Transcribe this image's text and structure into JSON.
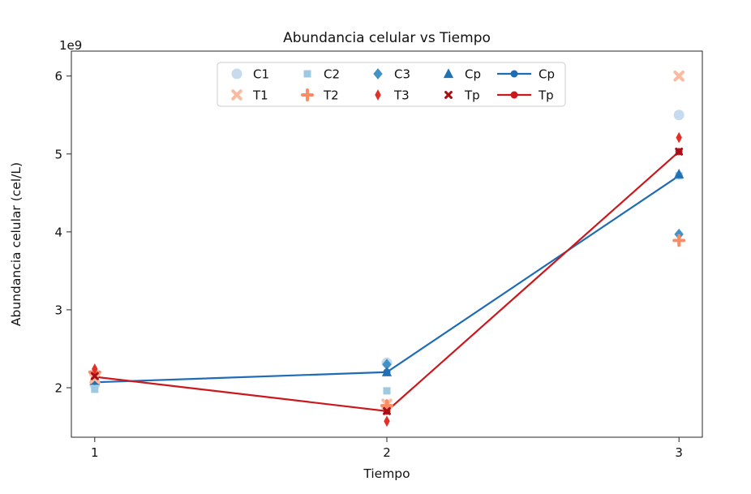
{
  "chart_data": {
    "type": "scatter",
    "title": "Abundancia celular vs Tiempo",
    "xlabel": "Tiempo",
    "ylabel": "Abundancia celular (cel/L)",
    "y_offset_label": "1e9",
    "x": [
      1,
      2,
      3
    ],
    "xtick_labels": [
      "1",
      "2",
      "3"
    ],
    "ytick_values": [
      2,
      3,
      4,
      5,
      6
    ],
    "ytick_labels": [
      "2",
      "3",
      "4",
      "5",
      "6"
    ],
    "xlim": [
      0.92,
      3.08
    ],
    "ylim": [
      1.365,
      6.32
    ],
    "y_scale_note": "y values are in units of 1e9 cel/L",
    "grid": false,
    "series": [
      {
        "name": "Cp",
        "kind": "line",
        "marker": "circle",
        "color": "#1f6cb4",
        "size": 9,
        "values": [
          2.07,
          2.2,
          4.72
        ]
      },
      {
        "name": "C1",
        "kind": "scatter",
        "marker": "circle",
        "color": "#c7dbef",
        "size": 13,
        "values": [
          2.04,
          2.32,
          5.5
        ]
      },
      {
        "name": "C2",
        "kind": "scatter",
        "marker": "square",
        "color": "#9ecae1",
        "size": 9,
        "values": [
          1.98,
          1.96,
          4.72
        ]
      },
      {
        "name": "C3",
        "kind": "scatter",
        "marker": "diamond",
        "color": "#4292c6",
        "size": 12,
        "values": [
          2.1,
          2.3,
          3.97
        ]
      },
      {
        "name": "Cp",
        "kind": "scatter",
        "marker": "triangle",
        "color": "#2171b5",
        "size": 12,
        "values": [
          2.09,
          2.2,
          4.74
        ]
      },
      {
        "name": "Tp",
        "kind": "line",
        "marker": "circle",
        "color": "#cb181d",
        "size": 9,
        "values": [
          2.14,
          1.7,
          5.03
        ]
      },
      {
        "name": "T1",
        "kind": "scatter",
        "marker": "x-thick",
        "color": "#fcbba1",
        "size": 12,
        "values": [
          2.12,
          1.79,
          6.0
        ]
      },
      {
        "name": "T2",
        "kind": "scatter",
        "marker": "plus-thick",
        "color": "#fc8a63",
        "size": 12,
        "values": [
          2.2,
          1.77,
          3.89
        ]
      },
      {
        "name": "T3",
        "kind": "scatter",
        "marker": "thin-diamond",
        "color": "#e32f27",
        "size": 12,
        "values": [
          2.24,
          1.57,
          5.21
        ]
      },
      {
        "name": "Tp",
        "kind": "scatter",
        "marker": "x-small",
        "color": "#a50f15",
        "size": 8,
        "values": [
          2.15,
          1.7,
          5.03
        ]
      }
    ],
    "legend": {
      "position": "top-center",
      "columns": 5,
      "rows": 2,
      "entries": [
        {
          "label": "C1",
          "marker": "circle",
          "color": "#c7dbef",
          "kind": "scatter",
          "size": 13
        },
        {
          "label": "T1",
          "marker": "x-thick",
          "color": "#fcbba1",
          "kind": "scatter",
          "size": 12
        },
        {
          "label": "C2",
          "marker": "square",
          "color": "#9ecae1",
          "kind": "scatter",
          "size": 9
        },
        {
          "label": "T2",
          "marker": "plus-thick",
          "color": "#fc8a63",
          "kind": "scatter",
          "size": 12
        },
        {
          "label": "C3",
          "marker": "diamond",
          "color": "#4292c6",
          "kind": "scatter",
          "size": 12
        },
        {
          "label": "T3",
          "marker": "thin-diamond",
          "color": "#e32f27",
          "kind": "scatter",
          "size": 12
        },
        {
          "label": "Cp",
          "marker": "triangle",
          "color": "#2171b5",
          "kind": "scatter",
          "size": 12
        },
        {
          "label": "Tp",
          "marker": "x-small",
          "color": "#a50f15",
          "kind": "scatter",
          "size": 8
        },
        {
          "label": "Cp",
          "marker": "circle",
          "color": "#1f6cb4",
          "kind": "line",
          "size": 9
        },
        {
          "label": "Tp",
          "marker": "circle",
          "color": "#cb181d",
          "kind": "line",
          "size": 9
        }
      ]
    }
  }
}
